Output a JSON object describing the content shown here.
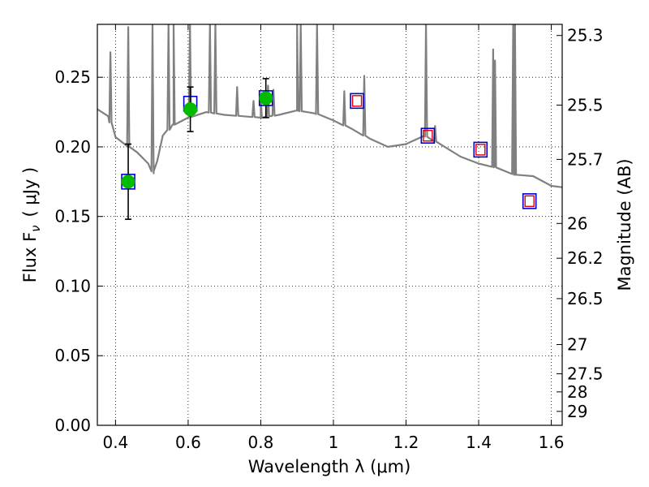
{
  "chart_data": {
    "type": "scatter",
    "xlabel": "Wavelength  λ (μm)",
    "ylabel": "Flux  F",
    "ylabel_sub": "ν",
    "ylabel_unit": "( μJy )",
    "y2label": "Magnitude (AB)",
    "xlim": [
      0.35,
      1.63
    ],
    "ylim": [
      0.0,
      0.288
    ],
    "grid": true,
    "x_ticks": [
      {
        "value": 0.4,
        "label": "0.4"
      },
      {
        "value": 0.6,
        "label": "0.6"
      },
      {
        "value": 0.8,
        "label": "0.8"
      },
      {
        "value": 1.0,
        "label": "1"
      },
      {
        "value": 1.2,
        "label": "1.2"
      },
      {
        "value": 1.4,
        "label": "1.4"
      },
      {
        "value": 1.6,
        "label": "1.6"
      }
    ],
    "y_ticks": [
      {
        "value": 0.0,
        "label": "0.00"
      },
      {
        "value": 0.05,
        "label": "0.05"
      },
      {
        "value": 0.1,
        "label": "0.10"
      },
      {
        "value": 0.15,
        "label": "0.15"
      },
      {
        "value": 0.2,
        "label": "0.20"
      },
      {
        "value": 0.25,
        "label": "0.25"
      }
    ],
    "y2_ticks": [
      {
        "flux": 0.28,
        "label": "25.3"
      },
      {
        "flux": 0.23,
        "label": "25.5"
      },
      {
        "flux": 0.191,
        "label": "25.7"
      },
      {
        "flux": 0.145,
        "label": "26"
      },
      {
        "flux": 0.12,
        "label": "26.2"
      },
      {
        "flux": 0.091,
        "label": "26.5"
      },
      {
        "flux": 0.058,
        "label": "27"
      },
      {
        "flux": 0.037,
        "label": "27.5"
      },
      {
        "flux": 0.024,
        "label": "28"
      },
      {
        "flux": 0.01,
        "label": "29"
      }
    ],
    "series": [
      {
        "name": "observed photometry (green circles)",
        "color": "#00bb00",
        "points": [
          {
            "x": 0.435,
            "y": 0.175,
            "err": 0.027
          },
          {
            "x": 0.606,
            "y": 0.227,
            "err": 0.016
          },
          {
            "x": 0.814,
            "y": 0.235,
            "err": 0.014
          }
        ]
      },
      {
        "name": "model photometry (blue squares)",
        "color": "#0000cc",
        "points": [
          {
            "x": 0.435,
            "y": 0.175
          },
          {
            "x": 0.606,
            "y": 0.231
          },
          {
            "x": 0.814,
            "y": 0.235
          },
          {
            "x": 1.065,
            "y": 0.233
          },
          {
            "x": 1.26,
            "y": 0.208
          },
          {
            "x": 1.405,
            "y": 0.198
          },
          {
            "x": 1.54,
            "y": 0.161
          }
        ]
      },
      {
        "name": "upper limits / predicted (red squares)",
        "color": "#dd0000",
        "points": [
          {
            "x": 1.065,
            "y": 0.233
          },
          {
            "x": 1.26,
            "y": 0.208
          },
          {
            "x": 1.405,
            "y": 0.198
          },
          {
            "x": 1.54,
            "y": 0.161
          }
        ]
      }
    ],
    "sed_model": {
      "name": "best-fit SED model spectrum",
      "color": "#808080",
      "continuum": [
        [
          0.35,
          0.227
        ],
        [
          0.38,
          0.222
        ],
        [
          0.4,
          0.207
        ],
        [
          0.43,
          0.201
        ],
        [
          0.46,
          0.196
        ],
        [
          0.49,
          0.188
        ],
        [
          0.505,
          0.181
        ],
        [
          0.515,
          0.19
        ],
        [
          0.53,
          0.208
        ],
        [
          0.56,
          0.216
        ],
        [
          0.6,
          0.221
        ],
        [
          0.65,
          0.225
        ],
        [
          0.7,
          0.223
        ],
        [
          0.75,
          0.222
        ],
        [
          0.8,
          0.221
        ],
        [
          0.85,
          0.223
        ],
        [
          0.9,
          0.226
        ],
        [
          0.95,
          0.224
        ],
        [
          1.0,
          0.219
        ],
        [
          1.05,
          0.213
        ],
        [
          1.1,
          0.206
        ],
        [
          1.15,
          0.2
        ],
        [
          1.2,
          0.202
        ],
        [
          1.25,
          0.208
        ],
        [
          1.3,
          0.201
        ],
        [
          1.35,
          0.193
        ],
        [
          1.4,
          0.188
        ],
        [
          1.45,
          0.185
        ],
        [
          1.5,
          0.18
        ],
        [
          1.55,
          0.179
        ],
        [
          1.6,
          0.172
        ],
        [
          1.63,
          0.171
        ]
      ],
      "emission_lines": [
        {
          "x": 0.386,
          "peak": 0.268
        },
        {
          "x": 0.435,
          "peak": 0.286
        },
        {
          "x": 0.502,
          "peak": 0.288
        },
        {
          "x": 0.546,
          "peak": 0.288
        },
        {
          "x": 0.56,
          "peak": 0.288
        },
        {
          "x": 0.605,
          "peak": 0.288
        },
        {
          "x": 0.66,
          "peak": 0.288
        },
        {
          "x": 0.675,
          "peak": 0.288
        },
        {
          "x": 0.735,
          "peak": 0.243
        },
        {
          "x": 0.78,
          "peak": 0.233
        },
        {
          "x": 0.8,
          "peak": 0.236
        },
        {
          "x": 0.82,
          "peak": 0.244
        },
        {
          "x": 0.835,
          "peak": 0.241
        },
        {
          "x": 0.9,
          "peak": 0.288
        },
        {
          "x": 0.91,
          "peak": 0.288
        },
        {
          "x": 0.955,
          "peak": 0.288
        },
        {
          "x": 1.03,
          "peak": 0.24
        },
        {
          "x": 1.085,
          "peak": 0.251
        },
        {
          "x": 1.255,
          "peak": 0.288
        },
        {
          "x": 1.28,
          "peak": 0.215
        },
        {
          "x": 1.44,
          "peak": 0.27
        },
        {
          "x": 1.445,
          "peak": 0.262
        },
        {
          "x": 1.495,
          "peak": 0.288
        },
        {
          "x": 1.5,
          "peak": 0.288
        }
      ]
    }
  }
}
